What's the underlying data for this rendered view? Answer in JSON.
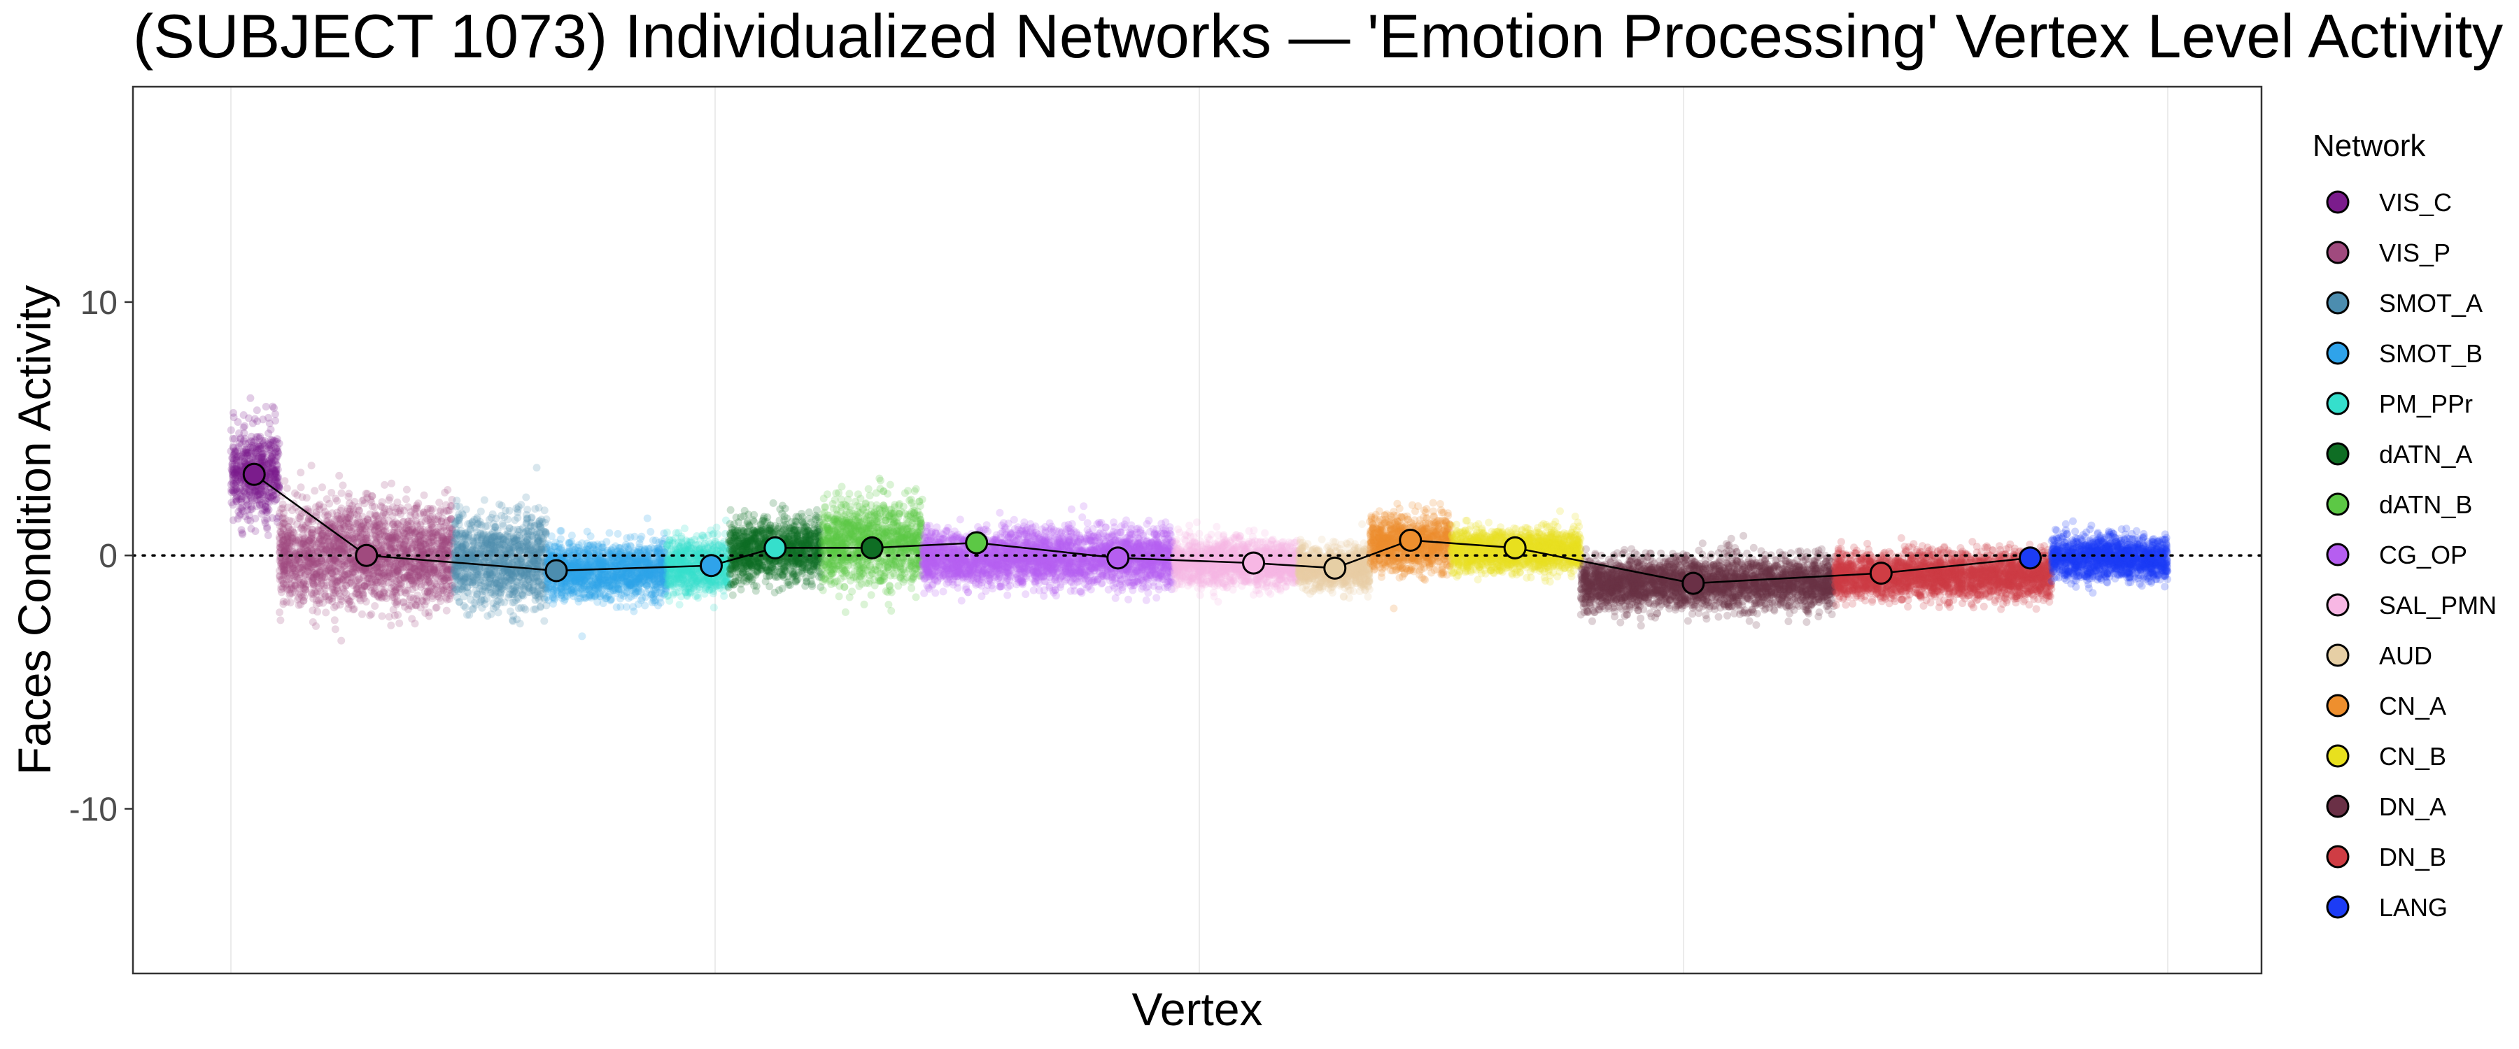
{
  "chart_data": {
    "type": "scatter",
    "title": "(SUBJECT 1073) Individualized Networks — 'Emotion Processing' Vertex Level Activity",
    "xlabel": "Vertex",
    "ylabel": "Faces Condition Activity",
    "ylim": [
      -16.5,
      18.5
    ],
    "yticks": [
      -10,
      0,
      10
    ],
    "x_range": [
      0,
      1000
    ],
    "x_gridlines": [
      0,
      250,
      500,
      750,
      1000
    ],
    "reference_line_y": 0,
    "grid": true,
    "legend": {
      "title": "Network",
      "position": "right"
    },
    "networks": [
      {
        "name": "VIS_C",
        "color": "#7B1C8C",
        "x_start": 0,
        "x_end": 25,
        "mean": 3.2,
        "spread": 2.0
      },
      {
        "name": "VIS_P",
        "color": "#A04A7E",
        "x_start": 25,
        "x_end": 115,
        "mean": 0.0,
        "spread": 2.2
      },
      {
        "name": "SMOT_A",
        "color": "#4C8DAF",
        "x_start": 115,
        "x_end": 163,
        "mean": -0.2,
        "spread": 1.9
      },
      {
        "name": "SMOT_B",
        "color": "#2FA3EA",
        "x_start": 163,
        "x_end": 225,
        "mean": -0.6,
        "spread": 1.2
      },
      {
        "name": "PM_PPr",
        "color": "#35DFCC",
        "x_start": 225,
        "x_end": 257,
        "mean": -0.4,
        "spread": 1.2
      },
      {
        "name": "dATN_A",
        "color": "#0F6E24",
        "x_start": 257,
        "x_end": 305,
        "mean": 0.2,
        "spread": 1.3
      },
      {
        "name": "dATN_B",
        "color": "#5CC845",
        "x_start": 305,
        "x_end": 357,
        "mean": 0.5,
        "spread": 1.8
      },
      {
        "name": "CG_OP",
        "color": "#B65EF0",
        "x_start": 357,
        "x_end": 487,
        "mean": -0.1,
        "spread": 1.2
      },
      {
        "name": "SAL_PMN",
        "color": "#F7B7E4",
        "x_start": 487,
        "x_end": 551,
        "mean": -0.3,
        "spread": 1.0
      },
      {
        "name": "AUD",
        "color": "#E6CFA5",
        "x_start": 551,
        "x_end": 588,
        "mean": -0.5,
        "spread": 0.9
      },
      {
        "name": "CN_A",
        "color": "#EE8F2E",
        "x_start": 588,
        "x_end": 630,
        "mean": 0.5,
        "spread": 1.2
      },
      {
        "name": "CN_B",
        "color": "#E8E01E",
        "x_start": 630,
        "x_end": 697,
        "mean": 0.2,
        "spread": 0.9
      },
      {
        "name": "DN_A",
        "color": "#6A3046",
        "x_start": 697,
        "x_end": 828,
        "mean": -1.1,
        "spread": 1.1
      },
      {
        "name": "DN_B",
        "color": "#CF3D44",
        "x_start": 828,
        "x_end": 940,
        "mean": -0.8,
        "spread": 1.0
      },
      {
        "name": "LANG",
        "color": "#1C3CF5",
        "x_start": 940,
        "x_end": 1000,
        "mean": -0.1,
        "spread": 0.9
      }
    ],
    "mean_line": {
      "x": [
        12,
        70,
        168,
        248,
        281,
        331,
        385,
        458,
        528,
        570,
        609,
        663,
        755,
        852,
        929
      ],
      "y": [
        3.2,
        0.0,
        -0.6,
        -0.4,
        0.3,
        0.3,
        0.5,
        -0.1,
        -0.3,
        -0.5,
        0.6,
        0.3,
        -1.1,
        -0.7,
        -0.1
      ]
    }
  }
}
